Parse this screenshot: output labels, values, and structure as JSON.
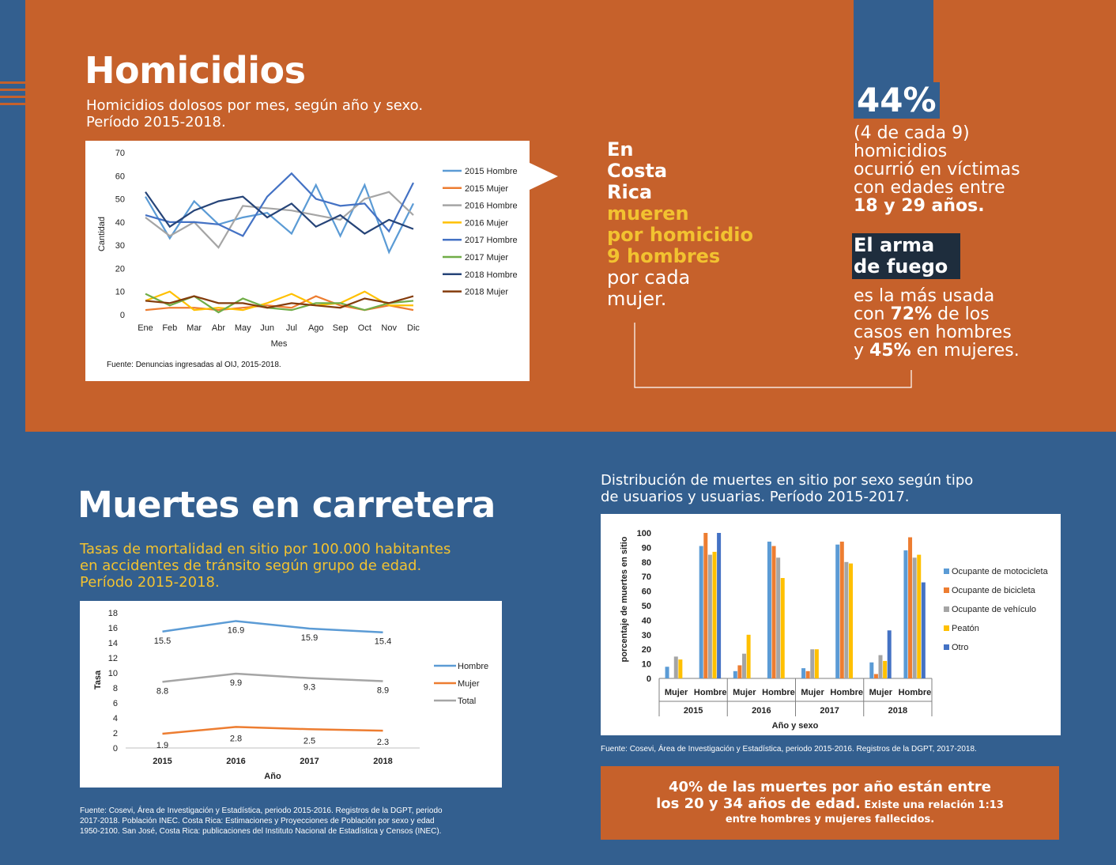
{
  "homicidios": {
    "title": "Homicidios",
    "subtitle_1": "Homicidios dolosos por mes, según año y sexo.",
    "subtitle_2": "Período 2015-2018.",
    "source": "Fuente: Denuncias ingresadas al OIJ, 2015-2018."
  },
  "callout": {
    "line1": "En",
    "line2": "Costa",
    "line3": "Rica",
    "line4": "mueren",
    "line5": "por homicidio",
    "line6": "9 hombres",
    "line7": "por cada",
    "line8": "mujer."
  },
  "stat44": {
    "pct": "44%",
    "l1": "(4 de cada 9)",
    "l2": "homicidios",
    "l3": "ocurrió en víctimas",
    "l4": "con edades entre",
    "l5": "18 y 29 años."
  },
  "arma": {
    "l1": "El arma",
    "l2": "de fuego",
    "t1": "es la más usada",
    "t2a": "con ",
    "t2b": "72%",
    "t2c": " de los",
    "t3": "casos en hombres",
    "t4a": "y ",
    "t4b": "45%",
    "t4c": " en mujeres."
  },
  "carretera": {
    "title": "Muertes en carretera",
    "subtitle_1": "Tasas de mortalidad en sitio por 100.000 habitantes",
    "subtitle_2": "en accidentes de tránsito según grupo de edad.",
    "subtitle_3": "Período 2015-2018.",
    "source_1": "Fuente: Cosevi, Área de Investigación y Estadística, periodo 2015-2016. Registros de la DGPT, periodo",
    "source_2": "2017-2018. Población INEC. Costa Rica: Estimaciones y Proyecciones de Población por sexo y edad",
    "source_3": "1950-2100. San José, Costa Rica: publicaciones del Instituto Nacional de Estadística y Censos (INEC)."
  },
  "distribucion": {
    "title_1": "Distribución de muertes en sitio por sexo según tipo",
    "title_2": "de usuarios y usuarias. Período 2015-2017.",
    "source": "Fuente: Cosevi, Área de Investigación y Estadística, periodo 2015-2016. Registros de la DGPT, 2017-2018."
  },
  "footer_box": {
    "l1": "40% de las muertes por año están entre",
    "l2a": "los 20 y 34 años de edad.",
    "l2b": " Existe una relación 1:13",
    "l3": "entre hombres y mujeres fallecidos."
  },
  "colors": {
    "orange_bg": "#c6612b",
    "blue_bg": "#335f8f",
    "yellow": "#f2c230",
    "dark": "#1e2d3d"
  },
  "chart_data": [
    {
      "type": "line",
      "id": "homicidios",
      "categories": [
        "Ene",
        "Feb",
        "Mar",
        "Abr",
        "May",
        "Jun",
        "Jul",
        "Ago",
        "Sep",
        "Oct",
        "Nov",
        "Dic"
      ],
      "xlabel": "Mes",
      "ylabel": "Cantidad",
      "ylim": [
        0,
        70
      ],
      "yticks": [
        0,
        10,
        20,
        30,
        40,
        50,
        60,
        70
      ],
      "legend_position": "right",
      "series": [
        {
          "name": "2015 Hombre",
          "color": "#5b9bd5",
          "values": [
            51,
            33,
            49,
            39,
            42,
            44,
            35,
            56,
            34,
            56,
            27,
            48
          ]
        },
        {
          "name": "2015 Mujer",
          "color": "#ed7d31",
          "values": [
            2,
            3,
            3,
            2,
            3,
            4,
            3,
            8,
            4,
            2,
            4,
            2
          ]
        },
        {
          "name": "2016 Hombre",
          "color": "#a5a5a5",
          "values": [
            42,
            34,
            40,
            29,
            47,
            46,
            45,
            43,
            41,
            50,
            53,
            43
          ]
        },
        {
          "name": "2016 Mujer",
          "color": "#ffc000",
          "values": [
            6,
            10,
            2,
            3,
            2,
            5,
            9,
            4,
            5,
            10,
            4,
            4
          ]
        },
        {
          "name": "2017 Hombre",
          "color": "#4472c4",
          "values": [
            43,
            40,
            40,
            39,
            34,
            51,
            61,
            50,
            47,
            48,
            36,
            57
          ]
        },
        {
          "name": "2017 Mujer",
          "color": "#70ad47",
          "values": [
            9,
            4,
            8,
            1,
            7,
            3,
            2,
            5,
            5,
            2,
            5,
            6
          ]
        },
        {
          "name": "2018 Hombre",
          "color": "#264478",
          "values": [
            53,
            38,
            45,
            49,
            51,
            42,
            48,
            38,
            43,
            35,
            41,
            37
          ]
        },
        {
          "name": "2018 Mujer",
          "color": "#843c0c",
          "values": [
            6,
            5,
            8,
            5,
            5,
            3,
            5,
            4,
            3,
            7,
            5,
            8
          ]
        }
      ]
    },
    {
      "type": "line",
      "id": "tasas",
      "categories": [
        "2015",
        "2016",
        "2017",
        "2018"
      ],
      "xlabel": "Año",
      "ylabel": "Tasa",
      "ylim": [
        0,
        18
      ],
      "yticks": [
        0,
        2,
        4,
        6,
        8,
        10,
        12,
        14,
        16,
        18
      ],
      "legend_position": "right",
      "series": [
        {
          "name": "Hombre",
          "color": "#5b9bd5",
          "values": [
            15.5,
            16.9,
            15.9,
            15.4
          ],
          "labels": [
            "15.5",
            "16.9",
            "15.9",
            "15.4"
          ]
        },
        {
          "name": "Mujer",
          "color": "#ed7d31",
          "values": [
            1.9,
            2.8,
            2.5,
            2.3
          ],
          "labels": [
            "1.9",
            "2.8",
            "2.5",
            "2.3"
          ]
        },
        {
          "name": "Total",
          "color": "#a5a5a5",
          "values": [
            8.8,
            9.9,
            9.3,
            8.9
          ],
          "labels": [
            "8.8",
            "9.9",
            "9.3",
            "8.9"
          ]
        }
      ]
    },
    {
      "type": "bar",
      "id": "distribucion",
      "groups": [
        "2015",
        "2016",
        "2017",
        "2018"
      ],
      "categories": [
        "Mujer",
        "Hombre",
        "Mujer",
        "Hombre",
        "Mujer",
        "Hombre",
        "Mujer",
        "Hombre"
      ],
      "xlabel": "Año y sexo",
      "ylabel": "porcentaje de muertes en sitio",
      "ylim": [
        0,
        100
      ],
      "yticks": [
        0,
        10,
        20,
        30,
        40,
        50,
        60,
        70,
        80,
        90,
        100
      ],
      "legend_position": "right",
      "series": [
        {
          "name": "Ocupante de motocicleta",
          "color": "#5b9bd5",
          "values": [
            8,
            91,
            5,
            94,
            7,
            92,
            11,
            88
          ]
        },
        {
          "name": "Ocupante de bicicleta",
          "color": "#ed7d31",
          "values": [
            0,
            100,
            9,
            91,
            5,
            94,
            3,
            97
          ]
        },
        {
          "name": "Ocupante de vehículo",
          "color": "#a5a5a5",
          "values": [
            15,
            85,
            17,
            83,
            20,
            80,
            16,
            83
          ]
        },
        {
          "name": "Peatón",
          "color": "#ffc000",
          "values": [
            13,
            87,
            30,
            69,
            20,
            79,
            12,
            85
          ]
        },
        {
          "name": "Otro",
          "color": "#4472c4",
          "values": [
            0,
            100,
            0,
            0,
            0,
            0,
            33,
            66
          ]
        }
      ]
    }
  ]
}
